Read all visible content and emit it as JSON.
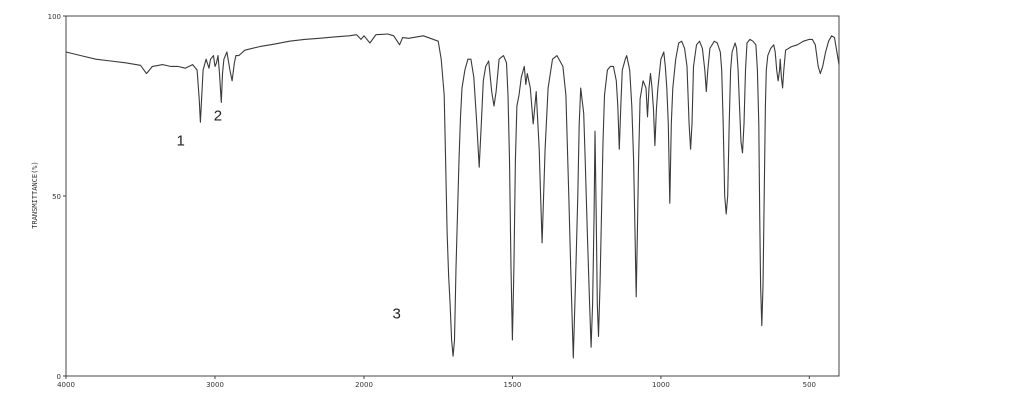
{
  "chart_data": {
    "type": "line",
    "title": "",
    "xlabel": "",
    "ylabel": "TRANSMITTANCE(%)",
    "xlim": [
      4000,
      400
    ],
    "ylim": [
      0,
      100
    ],
    "x_ticks": [
      4000,
      3000,
      2000,
      1500,
      1000,
      500
    ],
    "x_tick_labels": [
      "4000",
      "3000",
      "2000",
      "1500",
      "1000",
      "500"
    ],
    "y_ticks": [
      0,
      50,
      100
    ],
    "y_tick_labels": [
      "0",
      "50",
      "100"
    ],
    "grid": false,
    "legend": "none",
    "series": [
      {
        "color": "#3a3a3a",
        "points": [
          [
            4000,
            90
          ],
          [
            3900,
            89
          ],
          [
            3800,
            88
          ],
          [
            3700,
            87.5
          ],
          [
            3600,
            87
          ],
          [
            3500,
            86.3
          ],
          [
            3460,
            84
          ],
          [
            3420,
            86
          ],
          [
            3350,
            86.5
          ],
          [
            3300,
            86
          ],
          [
            3250,
            86
          ],
          [
            3200,
            85.5
          ],
          [
            3150,
            86.5
          ],
          [
            3120,
            85
          ],
          [
            3106,
            77
          ],
          [
            3098,
            70.5
          ],
          [
            3090,
            77
          ],
          [
            3080,
            85
          ],
          [
            3060,
            88
          ],
          [
            3040,
            85.5
          ],
          [
            3030,
            88
          ],
          [
            3010,
            89
          ],
          [
            3000,
            86
          ],
          [
            2990,
            87
          ],
          [
            2980,
            89
          ],
          [
            2970,
            84
          ],
          [
            2958,
            76
          ],
          [
            2950,
            84
          ],
          [
            2940,
            88
          ],
          [
            2920,
            90
          ],
          [
            2900,
            85
          ],
          [
            2885,
            82
          ],
          [
            2870,
            87
          ],
          [
            2860,
            89
          ],
          [
            2840,
            89
          ],
          [
            2800,
            90.5
          ],
          [
            2700,
            91.5
          ],
          [
            2600,
            92.2
          ],
          [
            2500,
            93
          ],
          [
            2400,
            93.5
          ],
          [
            2300,
            93.8
          ],
          [
            2200,
            94.2
          ],
          [
            2100,
            94.5
          ],
          [
            2050,
            94.8
          ],
          [
            2020,
            93.5
          ],
          [
            2000,
            94.5
          ],
          [
            1980,
            92.5
          ],
          [
            1960,
            94.8
          ],
          [
            1920,
            95
          ],
          [
            1900,
            94.5
          ],
          [
            1880,
            92
          ],
          [
            1870,
            94
          ],
          [
            1850,
            93.8
          ],
          [
            1800,
            94.5
          ],
          [
            1750,
            93
          ],
          [
            1740,
            88
          ],
          [
            1730,
            78
          ],
          [
            1725,
            60
          ],
          [
            1720,
            40
          ],
          [
            1715,
            28
          ],
          [
            1710,
            20
          ],
          [
            1705,
            10
          ],
          [
            1700,
            5.5
          ],
          [
            1695,
            10
          ],
          [
            1690,
            30
          ],
          [
            1685,
            45
          ],
          [
            1680,
            60
          ],
          [
            1675,
            72
          ],
          [
            1670,
            80
          ],
          [
            1660,
            85
          ],
          [
            1650,
            88
          ],
          [
            1640,
            88
          ],
          [
            1630,
            83
          ],
          [
            1620,
            70
          ],
          [
            1612,
            58
          ],
          [
            1605,
            70
          ],
          [
            1598,
            82
          ],
          [
            1590,
            86
          ],
          [
            1580,
            87.5
          ],
          [
            1570,
            79
          ],
          [
            1562,
            75
          ],
          [
            1555,
            79
          ],
          [
            1545,
            88
          ],
          [
            1530,
            89
          ],
          [
            1520,
            87
          ],
          [
            1515,
            78
          ],
          [
            1510,
            60
          ],
          [
            1505,
            30
          ],
          [
            1500,
            10
          ],
          [
            1495,
            30
          ],
          [
            1490,
            60
          ],
          [
            1485,
            75
          ],
          [
            1478,
            78
          ],
          [
            1470,
            83
          ],
          [
            1460,
            86
          ],
          [
            1455,
            81
          ],
          [
            1450,
            84
          ],
          [
            1440,
            80
          ],
          [
            1430,
            70
          ],
          [
            1420,
            79
          ],
          [
            1410,
            63
          ],
          [
            1405,
            50
          ],
          [
            1400,
            37
          ],
          [
            1395,
            50
          ],
          [
            1390,
            63
          ],
          [
            1380,
            80
          ],
          [
            1365,
            88
          ],
          [
            1350,
            89
          ],
          [
            1330,
            86
          ],
          [
            1320,
            78
          ],
          [
            1310,
            50
          ],
          [
            1302,
            25
          ],
          [
            1295,
            5
          ],
          [
            1288,
            25
          ],
          [
            1280,
            50
          ],
          [
            1275,
            70
          ],
          [
            1270,
            80
          ],
          [
            1260,
            73
          ],
          [
            1255,
            60
          ],
          [
            1248,
            40
          ],
          [
            1240,
            20
          ],
          [
            1235,
            8
          ],
          [
            1230,
            20
          ],
          [
            1225,
            45
          ],
          [
            1222,
            68
          ],
          [
            1218,
            45
          ],
          [
            1214,
            20
          ],
          [
            1210,
            11
          ],
          [
            1205,
            25
          ],
          [
            1200,
            45
          ],
          [
            1195,
            65
          ],
          [
            1190,
            78
          ],
          [
            1180,
            85
          ],
          [
            1170,
            86
          ],
          [
            1160,
            86
          ],
          [
            1150,
            82
          ],
          [
            1145,
            75
          ],
          [
            1140,
            63
          ],
          [
            1135,
            75
          ],
          [
            1130,
            85
          ],
          [
            1120,
            88
          ],
          [
            1115,
            89
          ],
          [
            1105,
            85
          ],
          [
            1098,
            75
          ],
          [
            1092,
            60
          ],
          [
            1087,
            40
          ],
          [
            1083,
            22
          ],
          [
            1079,
            40
          ],
          [
            1075,
            60
          ],
          [
            1070,
            77
          ],
          [
            1060,
            82
          ],
          [
            1050,
            80
          ],
          [
            1045,
            72
          ],
          [
            1040,
            80
          ],
          [
            1035,
            84
          ],
          [
            1030,
            80
          ],
          [
            1025,
            74
          ],
          [
            1020,
            64
          ],
          [
            1015,
            74
          ],
          [
            1010,
            80
          ],
          [
            1000,
            88
          ],
          [
            990,
            90
          ],
          [
            985,
            86
          ],
          [
            980,
            80
          ],
          [
            975,
            70
          ],
          [
            970,
            48
          ],
          [
            965,
            70
          ],
          [
            960,
            80
          ],
          [
            950,
            88
          ],
          [
            940,
            92.5
          ],
          [
            930,
            93
          ],
          [
            920,
            91
          ],
          [
            912,
            86
          ],
          [
            905,
            70
          ],
          [
            900,
            63
          ],
          [
            895,
            70
          ],
          [
            890,
            86
          ],
          [
            880,
            92
          ],
          [
            870,
            93
          ],
          [
            860,
            91
          ],
          [
            852,
            85
          ],
          [
            847,
            79
          ],
          [
            842,
            85
          ],
          [
            835,
            91
          ],
          [
            820,
            93
          ],
          [
            810,
            92.5
          ],
          [
            800,
            90
          ],
          [
            795,
            85
          ],
          [
            790,
            70
          ],
          [
            785,
            50
          ],
          [
            780,
            45
          ],
          [
            775,
            50
          ],
          [
            770,
            70
          ],
          [
            765,
            85
          ],
          [
            760,
            90
          ],
          [
            750,
            92.5
          ],
          [
            745,
            91
          ],
          [
            740,
            85
          ],
          [
            735,
            75
          ],
          [
            730,
            65
          ],
          [
            725,
            62
          ],
          [
            720,
            70
          ],
          [
            715,
            85
          ],
          [
            710,
            92.5
          ],
          [
            700,
            93.5
          ],
          [
            690,
            93
          ],
          [
            680,
            92
          ],
          [
            675,
            85
          ],
          [
            670,
            70
          ],
          [
            667,
            45
          ],
          [
            664,
            25
          ],
          [
            660,
            14
          ],
          [
            656,
            25
          ],
          [
            652,
            50
          ],
          [
            648,
            75
          ],
          [
            645,
            85
          ],
          [
            640,
            89
          ],
          [
            630,
            91
          ],
          [
            620,
            92
          ],
          [
            615,
            90
          ],
          [
            610,
            85
          ],
          [
            605,
            82
          ],
          [
            600,
            85
          ],
          [
            598,
            88
          ],
          [
            594,
            83
          ],
          [
            590,
            80
          ],
          [
            586,
            85
          ],
          [
            580,
            90.5
          ],
          [
            560,
            91.5
          ],
          [
            540,
            92
          ],
          [
            520,
            93
          ],
          [
            500,
            93.5
          ],
          [
            490,
            93.5
          ],
          [
            480,
            92
          ],
          [
            470,
            86
          ],
          [
            463,
            84
          ],
          [
            455,
            86
          ],
          [
            445,
            90
          ],
          [
            435,
            93
          ],
          [
            425,
            94.5
          ],
          [
            415,
            94
          ],
          [
            405,
            89
          ],
          [
            400,
            86.5
          ]
        ]
      }
    ],
    "annotations": [
      {
        "text": "1",
        "x": 3230,
        "y": 64
      },
      {
        "text": "2",
        "x": 2980,
        "y": 71
      },
      {
        "text": "3",
        "x": 1890,
        "y": 16
      }
    ]
  }
}
